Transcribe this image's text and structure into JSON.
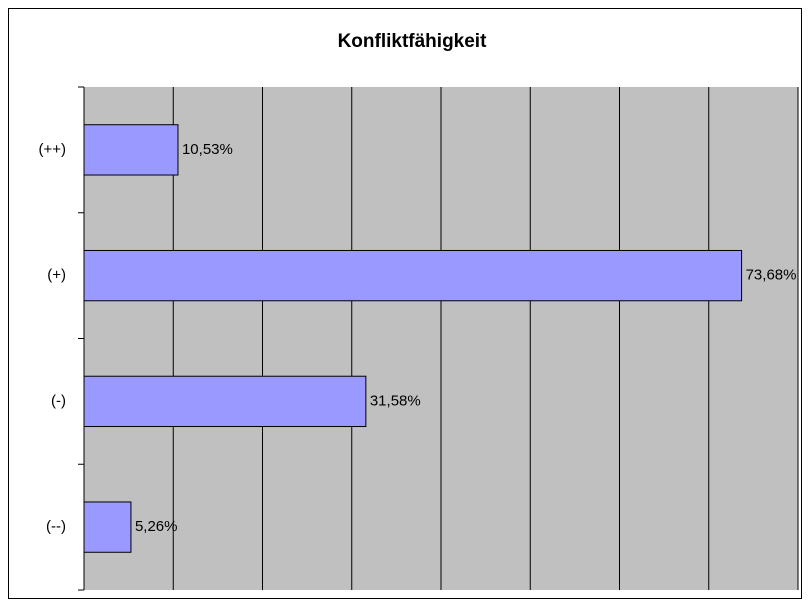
{
  "chart_data": {
    "type": "bar",
    "orientation": "horizontal",
    "title": "Konfliktfähigkeit",
    "categories": [
      "(++)",
      "(+)",
      "(-)",
      "(--)"
    ],
    "values": [
      10.53,
      73.68,
      31.58,
      5.26
    ],
    "value_labels": [
      "10,53%",
      "73,68%",
      "31,58%",
      "5,26%"
    ],
    "color": "#9999ff",
    "xlim": [
      0,
      80
    ],
    "xticks": [
      0,
      10,
      20,
      30,
      40,
      50,
      60,
      70,
      80
    ],
    "grid": true
  }
}
